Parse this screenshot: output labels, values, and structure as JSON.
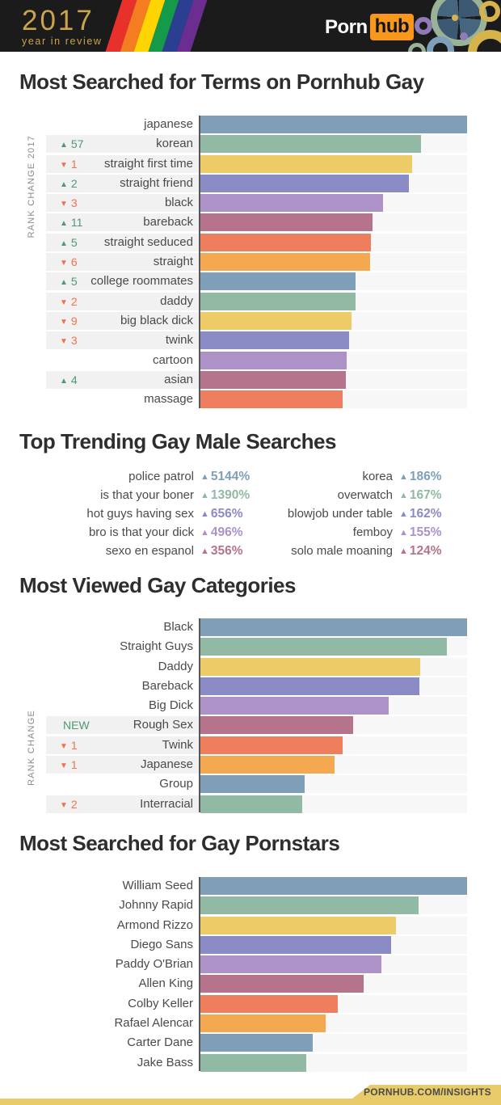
{
  "header": {
    "logo_year": "2017",
    "logo_sub": "year in review",
    "brand_porn": "Porn",
    "brand_hub": "hub",
    "brand_colors": {
      "background": "#1B1B1B",
      "hub_box": "#F7981D",
      "logo_gold": "#C9A44C"
    }
  },
  "palette": {
    "blue": "#7F9FB8",
    "green": "#92B9A3",
    "yellow": "#EDCB66",
    "indigo": "#8A8BC4",
    "purple": "#AC92C7",
    "maroon": "#B5738C",
    "coral": "#EF7E5E",
    "orange": "#F4A950",
    "rank_up_green": "#4E9971",
    "rank_down_red": "#F3704F",
    "footer_gold": "#E7CB69"
  },
  "chart_data": [
    {
      "type": "bar",
      "title": "Most Searched for Terms on Pornhub Gay",
      "axis_label": "RANK CHANGE 2017",
      "value_unit": "relative bar length, % of longest bar (no numeric axis shown)",
      "xlim": [
        0,
        100
      ],
      "grid": false,
      "rows": [
        {
          "label": "japanese",
          "value": 100,
          "color": "blue",
          "change_icon": "",
          "change_val": "",
          "dir": "",
          "band": ""
        },
        {
          "label": "korean",
          "value": 82.7,
          "color": "green",
          "change_icon": "▲",
          "change_val": "57",
          "dir": "up",
          "band": "striped"
        },
        {
          "label": "straight first time",
          "value": 79.4,
          "color": "yellow",
          "change_icon": "▼",
          "change_val": "1",
          "dir": "down",
          "band": "striped"
        },
        {
          "label": "straight friend",
          "value": 78.2,
          "color": "indigo",
          "change_icon": "▲",
          "change_val": "2",
          "dir": "up",
          "band": "striped"
        },
        {
          "label": "black",
          "value": 68.5,
          "color": "purple",
          "change_icon": "▼",
          "change_val": "3",
          "dir": "down",
          "band": "striped"
        },
        {
          "label": "bareback",
          "value": 64.5,
          "color": "maroon",
          "change_icon": "▲",
          "change_val": "11",
          "dir": "up",
          "band": "striped"
        },
        {
          "label": "straight seduced",
          "value": 63.9,
          "color": "coral",
          "change_icon": "▲",
          "change_val": "5",
          "dir": "up",
          "band": "striped"
        },
        {
          "label": "straight",
          "value": 63.6,
          "color": "orange",
          "change_icon": "▼",
          "change_val": "6",
          "dir": "down",
          "band": "striped"
        },
        {
          "label": "college roommates",
          "value": 58.2,
          "color": "blue",
          "change_icon": "▲",
          "change_val": "5",
          "dir": "up",
          "band": "striped"
        },
        {
          "label": "daddy",
          "value": 58.2,
          "color": "green",
          "change_icon": "▼",
          "change_val": "2",
          "dir": "down",
          "band": "striped"
        },
        {
          "label": "big black dick",
          "value": 56.7,
          "color": "yellow",
          "change_icon": "▼",
          "change_val": "9",
          "dir": "down",
          "band": "striped"
        },
        {
          "label": "twink",
          "value": 55.8,
          "color": "indigo",
          "change_icon": "▼",
          "change_val": "3",
          "dir": "down",
          "band": "striped"
        },
        {
          "label": "cartoon",
          "value": 54.8,
          "color": "purple",
          "change_icon": "",
          "change_val": "",
          "dir": "",
          "band": ""
        },
        {
          "label": "asian",
          "value": 54.5,
          "color": "maroon",
          "change_icon": "▲",
          "change_val": "4",
          "dir": "up",
          "band": "striped"
        },
        {
          "label": "massage",
          "value": 53.3,
          "color": "coral",
          "change_icon": "",
          "change_val": "",
          "dir": "",
          "band": ""
        }
      ]
    },
    {
      "type": "table",
      "title": "Top Trending Gay Male Searches",
      "columns": [
        {
          "rows": [
            {
              "label": "police patrol",
              "icon": "▲",
              "value": "5144%",
              "color": "blue"
            },
            {
              "label": "is that your boner",
              "icon": "▲",
              "value": "1390%",
              "color": "green"
            },
            {
              "label": "hot guys having sex",
              "icon": "▲",
              "value": "656%",
              "color": "indigo"
            },
            {
              "label": "bro is that your dick",
              "icon": "▲",
              "value": "496%",
              "color": "purple"
            },
            {
              "label": "sexo en espanol",
              "icon": "▲",
              "value": "356%",
              "color": "maroon"
            }
          ]
        },
        {
          "rows": [
            {
              "label": "korea",
              "icon": "▲",
              "value": "186%",
              "color": "blue"
            },
            {
              "label": "overwatch",
              "icon": "▲",
              "value": "167%",
              "color": "green"
            },
            {
              "label": "blowjob under table",
              "icon": "▲",
              "value": "162%",
              "color": "indigo"
            },
            {
              "label": "femboy",
              "icon": "▲",
              "value": "155%",
              "color": "purple"
            },
            {
              "label": "solo male moaning",
              "icon": "▲",
              "value": "124%",
              "color": "maroon"
            }
          ]
        }
      ]
    },
    {
      "type": "bar",
      "title": "Most Viewed Gay Categories",
      "axis_label": "RANK CHANGE",
      "value_unit": "relative bar length, % of longest bar (no numeric axis shown)",
      "xlim": [
        0,
        100
      ],
      "grid": false,
      "rows": [
        {
          "label": "Black",
          "value": 100,
          "color": "blue",
          "change_icon": "",
          "change_val": "",
          "dir": "",
          "band": ""
        },
        {
          "label": "Straight Guys",
          "value": 92.4,
          "color": "green",
          "change_icon": "",
          "change_val": "",
          "dir": "",
          "band": ""
        },
        {
          "label": "Daddy",
          "value": 82.4,
          "color": "yellow",
          "change_icon": "",
          "change_val": "",
          "dir": "",
          "band": ""
        },
        {
          "label": "Bareback",
          "value": 82.1,
          "color": "indigo",
          "change_icon": "",
          "change_val": "",
          "dir": "",
          "band": ""
        },
        {
          "label": "Big Dick",
          "value": 70.6,
          "color": "purple",
          "change_icon": "",
          "change_val": "",
          "dir": "",
          "band": ""
        },
        {
          "label": "Rough Sex",
          "value": 57.3,
          "color": "maroon",
          "change_icon": "",
          "change_val": "NEW",
          "dir": "new",
          "band": "striped"
        },
        {
          "label": "Twink",
          "value": 53.3,
          "color": "coral",
          "change_icon": "▼",
          "change_val": "1",
          "dir": "down",
          "band": "striped"
        },
        {
          "label": "Japanese",
          "value": 50.3,
          "color": "orange",
          "change_icon": "▼",
          "change_val": "1",
          "dir": "down",
          "band": "striped"
        },
        {
          "label": "Group",
          "value": 39.1,
          "color": "blue",
          "change_icon": "",
          "change_val": "",
          "dir": "",
          "band": ""
        },
        {
          "label": "Interracial",
          "value": 38.2,
          "color": "green",
          "change_icon": "▼",
          "change_val": "2",
          "dir": "down",
          "band": "striped"
        }
      ]
    },
    {
      "type": "bar",
      "title": "Most Searched for Gay Pornstars",
      "axis_label": "",
      "value_unit": "relative bar length, % of longest bar (no numeric axis shown)",
      "xlim": [
        0,
        100
      ],
      "grid": false,
      "rows": [
        {
          "label": "William Seed",
          "value": 100,
          "color": "blue",
          "change_icon": "",
          "change_val": "",
          "dir": "",
          "band": ""
        },
        {
          "label": "Johnny Rapid",
          "value": 81.8,
          "color": "green",
          "change_icon": "",
          "change_val": "",
          "dir": "",
          "band": ""
        },
        {
          "label": "Armond Rizzo",
          "value": 73.3,
          "color": "yellow",
          "change_icon": "",
          "change_val": "",
          "dir": "",
          "band": ""
        },
        {
          "label": "Diego Sans",
          "value": 71.5,
          "color": "indigo",
          "change_icon": "",
          "change_val": "",
          "dir": "",
          "band": ""
        },
        {
          "label": "Paddy O'Brian",
          "value": 67.9,
          "color": "purple",
          "change_icon": "",
          "change_val": "",
          "dir": "",
          "band": ""
        },
        {
          "label": "Allen King",
          "value": 61.2,
          "color": "maroon",
          "change_icon": "",
          "change_val": "",
          "dir": "",
          "band": ""
        },
        {
          "label": "Colby Keller",
          "value": 51.5,
          "color": "coral",
          "change_icon": "",
          "change_val": "",
          "dir": "",
          "band": ""
        },
        {
          "label": "Rafael Alencar",
          "value": 47.0,
          "color": "orange",
          "change_icon": "",
          "change_val": "",
          "dir": "",
          "band": ""
        },
        {
          "label": "Carter Dane",
          "value": 42.1,
          "color": "blue",
          "change_icon": "",
          "change_val": "",
          "dir": "",
          "band": ""
        },
        {
          "label": "Jake Bass",
          "value": 39.7,
          "color": "green",
          "change_icon": "",
          "change_val": "",
          "dir": "",
          "band": ""
        }
      ]
    }
  ],
  "footer": {
    "label": "PORNHUB.COM/INSIGHTS"
  }
}
